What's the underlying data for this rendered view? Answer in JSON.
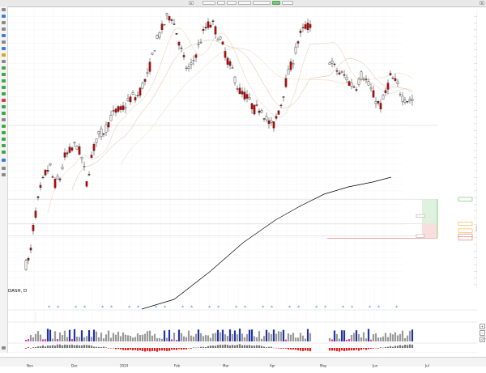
{
  "toolbar": {
    "symbol_field": "",
    "interval_field": "",
    "style_field": "",
    "order_ticket": "",
    "account_value": "",
    "percent_badge": ""
  },
  "chart_data": {
    "type": "candlestick",
    "title": "DASH, D",
    "ylim": [
      95,
      178
    ],
    "y_ticks": [],
    "x_labels": [
      "Nov",
      "Dec",
      "2024",
      "Feb",
      "Mar",
      "Apr",
      "May",
      "Jun",
      "Jul"
    ],
    "price_tags": [
      {
        "text": "",
        "value": 121.5,
        "color": "#39b54a"
      },
      {
        "text": "",
        "value": 114.2,
        "color": "#f39c12"
      },
      {
        "text": "",
        "value": 112.1,
        "color": "#f39c12"
      },
      {
        "text": "",
        "value": 110.6,
        "color": "#e74c3c"
      },
      {
        "text": "",
        "value": 109.8,
        "color": "#e74c3c"
      }
    ],
    "colors": {
      "up": "#ffffff",
      "down": "#d40000",
      "sma": "#000000",
      "ma_faint": "#e6c9a8",
      "volume_up": "#9a9a9a",
      "volume_hi": "#2233aa",
      "volume_mag": "#e040c0",
      "osc_up": "#777777",
      "osc_down": "#e02020"
    }
  },
  "legend": {
    "symbol": "DASH, D",
    "line2": "",
    "line3": "",
    "indicator_label": ""
  },
  "bottom": {
    "labels": [
      "Nov",
      "Dec",
      "2024",
      "Feb",
      "Mar",
      "Apr",
      "May",
      "Jun",
      "Jul"
    ]
  }
}
